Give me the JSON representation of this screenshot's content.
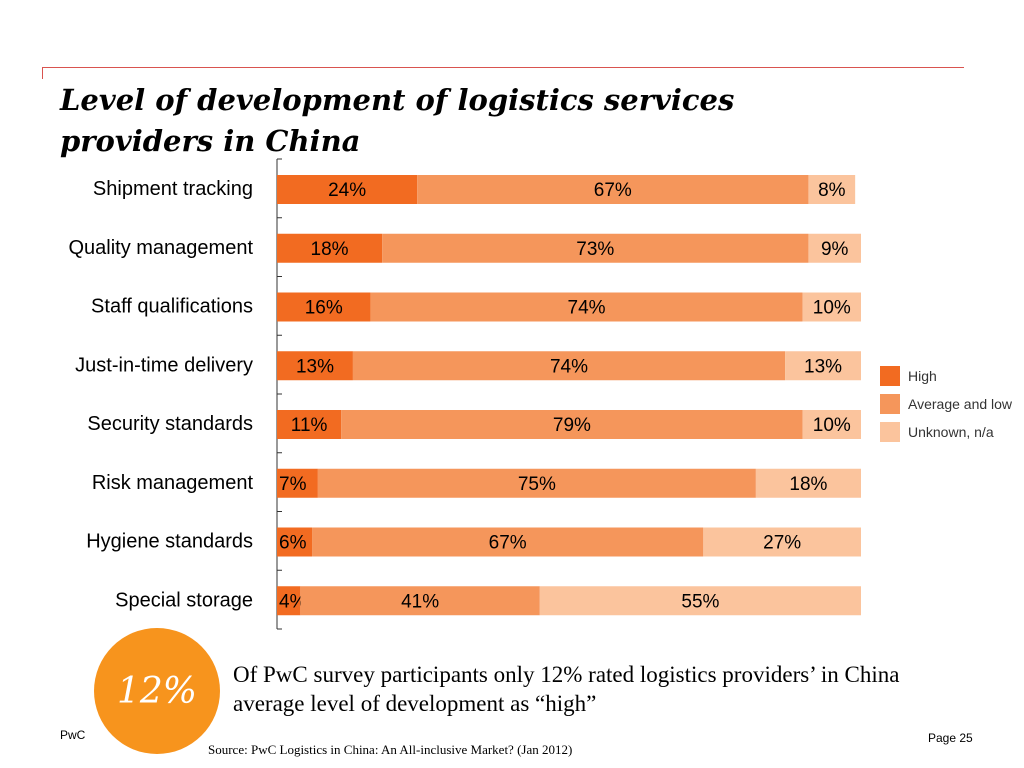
{
  "title": "Level of development of logistics services providers in China",
  "chart_data": {
    "type": "bar",
    "orientation": "horizontal",
    "stacked": true,
    "categories": [
      "Shipment tracking",
      "Quality management",
      "Staff qualifications",
      "Just-in-time delivery",
      "Security standards",
      "Risk management",
      "Hygiene standards",
      "Special storage"
    ],
    "series": [
      {
        "name": "High",
        "color": "#f26b21",
        "values": [
          24,
          18,
          16,
          13,
          11,
          7,
          6,
          4
        ]
      },
      {
        "name": "Average and low",
        "color": "#f5965b",
        "values": [
          67,
          73,
          74,
          74,
          79,
          75,
          67,
          41
        ]
      },
      {
        "name": "Unknown, n/a",
        "color": "#fbc49d",
        "values": [
          8,
          9,
          10,
          13,
          10,
          18,
          27,
          55
        ]
      }
    ],
    "value_suffix": "%",
    "xlim": [
      0,
      100
    ],
    "legend_position": "right",
    "grid": false
  },
  "callout": {
    "badge": "12%",
    "text": "Of PwC survey participants only 12% rated logistics providers’ in China average level of development as “high”"
  },
  "footer": {
    "brand": "PwC",
    "page": "Page 25",
    "source": "Source: PwC  Logistics in China: An All-inclusive Market? (Jan 2012)"
  }
}
